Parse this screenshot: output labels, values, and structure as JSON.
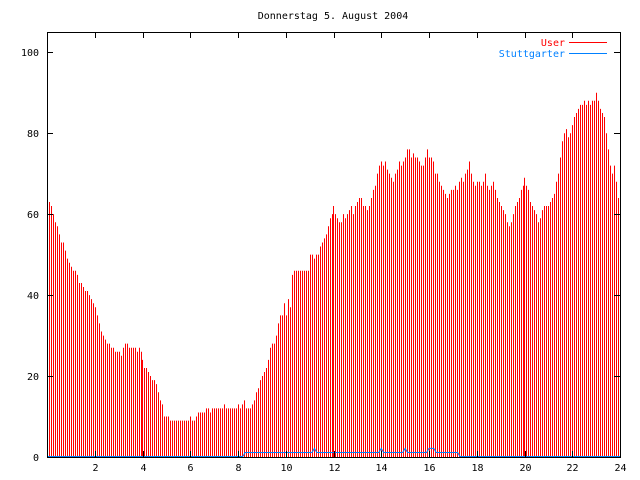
{
  "chart_data": {
    "type": "bar",
    "title": "Donnerstag 5. August 2004",
    "xlabel": "",
    "ylabel": "",
    "xlim": [
      0,
      24
    ],
    "ylim": [
      0,
      105
    ],
    "x_ticks": [
      2,
      4,
      6,
      8,
      10,
      12,
      14,
      16,
      18,
      20,
      22,
      24
    ],
    "y_ticks": [
      0,
      20,
      40,
      60,
      80,
      100
    ],
    "legend_position": "top-right",
    "colors": {
      "User": "#ff0000",
      "Stuttgarter": "#0080ff"
    },
    "series": [
      {
        "name": "User",
        "style": "impulses",
        "x_step_hours": 0.0833333,
        "values": [
          67,
          63,
          62,
          60,
          58,
          57,
          55,
          53,
          53,
          51,
          49,
          48,
          47,
          46,
          46,
          45,
          43,
          43,
          42,
          41,
          41,
          40,
          39,
          38,
          37,
          35,
          33,
          31,
          30,
          29,
          28,
          28,
          27,
          27,
          26,
          26,
          26,
          25,
          27,
          28,
          28,
          27,
          27,
          27,
          27,
          26,
          27,
          26,
          24,
          22,
          22,
          21,
          20,
          19,
          19,
          18,
          16,
          14,
          13,
          10,
          10,
          10,
          9,
          9,
          9,
          9,
          9,
          9,
          9,
          9,
          9,
          9,
          10,
          9,
          9,
          10,
          11,
          11,
          11,
          11,
          12,
          12,
          11,
          12,
          12,
          12,
          12,
          12,
          12,
          13,
          12,
          12,
          12,
          12,
          12,
          12,
          13,
          12,
          13,
          14,
          12,
          12,
          12,
          13,
          14,
          16,
          17,
          19,
          20,
          21,
          22,
          24,
          27,
          28,
          28,
          30,
          33,
          35,
          35,
          38,
          35,
          39,
          37,
          45,
          46,
          46,
          46,
          46,
          46,
          46,
          46,
          46,
          50,
          50,
          49,
          50,
          50,
          52,
          53,
          54,
          55,
          57,
          59,
          60,
          62,
          60,
          59,
          58,
          58,
          60,
          59,
          60,
          61,
          62,
          60,
          62,
          63,
          64,
          64,
          62,
          62,
          61,
          62,
          64,
          66,
          67,
          70,
          72,
          73,
          72,
          73,
          71,
          70,
          69,
          68,
          70,
          71,
          73,
          72,
          73,
          74,
          76,
          76,
          74,
          75,
          74,
          74,
          73,
          72,
          72,
          74,
          76,
          74,
          74,
          73,
          70,
          70,
          68,
          67,
          66,
          65,
          64,
          65,
          66,
          66,
          67,
          66,
          68,
          69,
          68,
          70,
          71,
          73,
          70,
          68,
          67,
          68,
          68,
          67,
          68,
          70,
          67,
          66,
          67,
          68,
          66,
          64,
          63,
          62,
          61,
          60,
          58,
          57,
          58,
          60,
          62,
          63,
          64,
          66,
          67,
          69,
          67,
          66,
          63,
          62,
          61,
          60,
          58,
          59,
          61,
          62,
          62,
          62,
          63,
          64,
          65,
          68,
          70,
          74,
          78,
          80,
          81,
          79,
          80,
          82,
          84,
          85,
          86,
          87,
          87,
          88,
          87,
          88,
          87,
          88,
          88,
          90,
          88,
          86,
          85,
          84,
          80,
          76,
          72,
          70,
          72,
          68,
          64
        ]
      },
      {
        "name": "Stuttgarter",
        "style": "line",
        "points": [
          [
            0,
            0
          ],
          [
            8.2,
            0
          ],
          [
            8.3,
            1
          ],
          [
            11.1,
            1
          ],
          [
            11.2,
            2
          ],
          [
            11.3,
            1
          ],
          [
            13.9,
            1
          ],
          [
            14.0,
            2
          ],
          [
            14.1,
            1
          ],
          [
            14.9,
            1
          ],
          [
            15.0,
            2
          ],
          [
            15.1,
            1
          ],
          [
            15.9,
            1
          ],
          [
            16.0,
            2
          ],
          [
            16.2,
            2
          ],
          [
            16.3,
            1
          ],
          [
            17.2,
            1
          ],
          [
            17.3,
            0
          ],
          [
            24,
            0
          ]
        ]
      }
    ]
  }
}
